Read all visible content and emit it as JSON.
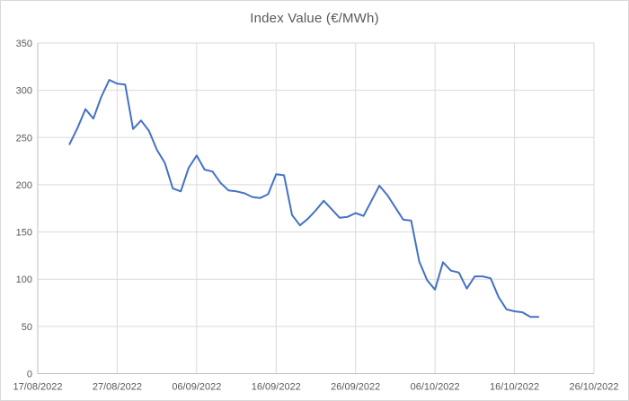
{
  "window": {
    "background": "#ffffff",
    "border_color": "#d9d9d9"
  },
  "chart_data": {
    "type": "line",
    "title": "Index Value (€/MWh)",
    "xlabel": "",
    "ylabel": "",
    "grid": true,
    "legend": false,
    "colors": {
      "series_line": "#4472C4",
      "gridline": "#d9d9d9",
      "axis_line": "#bfbfbf",
      "tick_label": "#595959",
      "title": "#595959"
    },
    "x_axis": {
      "start": "17/08/2022",
      "end": "26/10/2022",
      "tick_labels": [
        "17/08/2022",
        "27/08/2022",
        "06/09/2022",
        "16/09/2022",
        "26/09/2022",
        "06/10/2022",
        "16/10/2022",
        "26/10/2022"
      ]
    },
    "y_axis": {
      "min": 0,
      "max": 350,
      "tick_interval": 50,
      "tick_labels": [
        "0",
        "50",
        "100",
        "150",
        "200",
        "250",
        "300",
        "350"
      ]
    },
    "series": [
      {
        "name": "Index Value",
        "color": "#4472C4",
        "dates": [
          "21/08/2022",
          "22/08/2022",
          "23/08/2022",
          "24/08/2022",
          "25/08/2022",
          "26/08/2022",
          "27/08/2022",
          "28/08/2022",
          "29/08/2022",
          "30/08/2022",
          "31/08/2022",
          "01/09/2022",
          "02/09/2022",
          "03/09/2022",
          "04/09/2022",
          "05/09/2022",
          "06/09/2022",
          "07/09/2022",
          "08/09/2022",
          "09/09/2022",
          "10/09/2022",
          "11/09/2022",
          "12/09/2022",
          "13/09/2022",
          "14/09/2022",
          "15/09/2022",
          "16/09/2022",
          "17/09/2022",
          "18/09/2022",
          "19/09/2022",
          "20/09/2022",
          "21/09/2022",
          "22/09/2022",
          "23/09/2022",
          "24/09/2022",
          "25/09/2022",
          "26/09/2022",
          "27/09/2022",
          "28/09/2022",
          "29/09/2022",
          "30/09/2022",
          "01/10/2022",
          "02/10/2022",
          "03/10/2022",
          "04/10/2022",
          "05/10/2022",
          "06/10/2022",
          "07/10/2022",
          "08/10/2022",
          "09/10/2022",
          "10/10/2022",
          "11/10/2022",
          "12/10/2022",
          "13/10/2022",
          "14/10/2022",
          "15/10/2022",
          "16/10/2022",
          "17/10/2022",
          "18/10/2022",
          "19/10/2022"
        ],
        "values": [
          243,
          260,
          280,
          270,
          293,
          311,
          307,
          306,
          259,
          268,
          257,
          237,
          223,
          196,
          193,
          218,
          231,
          216,
          214,
          202,
          194,
          193,
          191,
          187,
          186,
          190,
          211,
          210,
          168,
          157,
          164,
          173,
          183,
          174,
          165,
          166,
          170,
          167,
          183,
          199,
          189,
          176,
          163,
          162,
          119,
          99,
          89,
          118,
          109,
          107,
          90,
          103,
          103,
          101,
          81,
          68,
          66,
          65,
          60,
          60
        ]
      }
    ]
  }
}
